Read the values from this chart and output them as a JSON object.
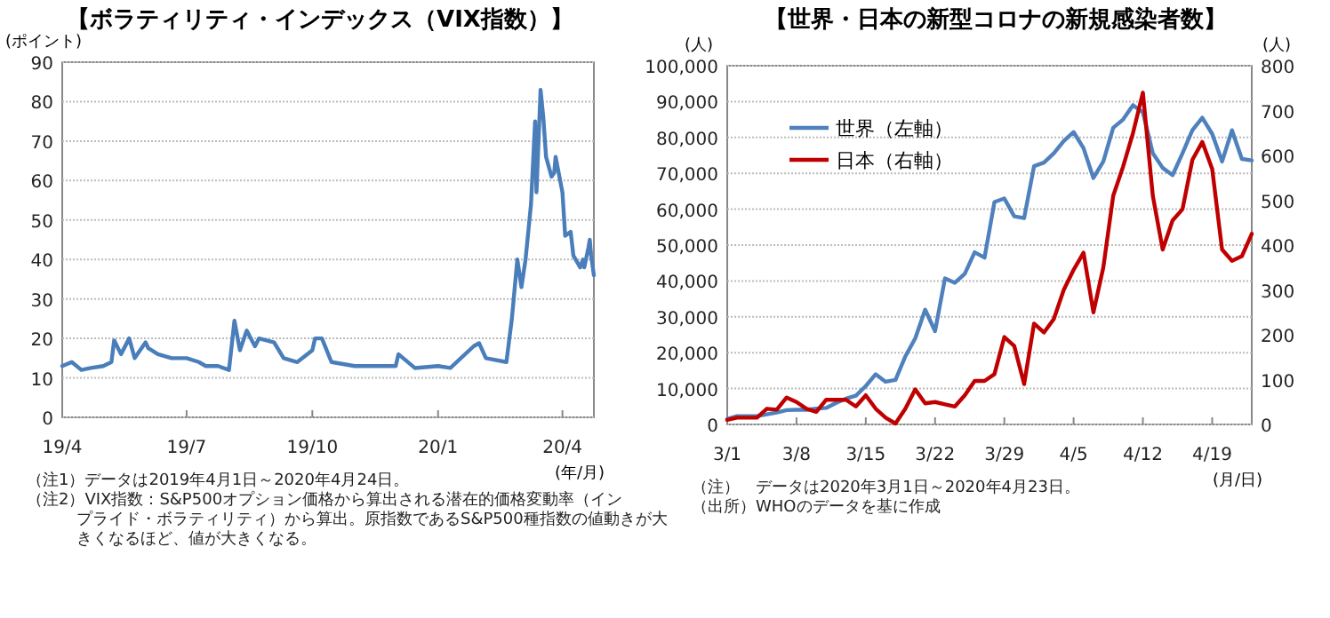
{
  "chart_data": [
    {
      "type": "line",
      "title": "【ボラティリティ・インデックス（VIX指数）】",
      "ylabel": "(ポイント)",
      "xlabel": "(年/月)",
      "x": [
        "2019-04-01",
        "2019-04-08",
        "2019-04-15",
        "2019-04-22",
        "2019-05-01",
        "2019-05-07",
        "2019-05-09",
        "2019-05-14",
        "2019-05-20",
        "2019-05-24",
        "2019-06-01",
        "2019-06-03",
        "2019-06-10",
        "2019-06-20",
        "2019-07-01",
        "2019-07-10",
        "2019-07-15",
        "2019-07-24",
        "2019-08-01",
        "2019-08-05",
        "2019-08-09",
        "2019-08-14",
        "2019-08-20",
        "2019-08-23",
        "2019-09-03",
        "2019-09-10",
        "2019-09-20",
        "2019-10-01",
        "2019-10-03",
        "2019-10-08",
        "2019-10-15",
        "2019-11-01",
        "2019-12-01",
        "2019-12-03",
        "2019-12-15",
        "2020-01-01",
        "2020-01-10",
        "2020-01-27",
        "2020-01-31",
        "2020-02-05",
        "2020-02-20",
        "2020-02-24",
        "2020-02-28",
        "2020-03-02",
        "2020-03-05",
        "2020-03-09",
        "2020-03-12",
        "2020-03-13",
        "2020-03-16",
        "2020-03-18",
        "2020-03-20",
        "2020-03-24",
        "2020-03-26",
        "2020-03-27",
        "2020-04-01",
        "2020-04-03",
        "2020-04-07",
        "2020-04-09",
        "2020-04-14",
        "2020-04-16",
        "2020-04-17",
        "2020-04-20",
        "2020-04-21",
        "2020-04-22",
        "2020-04-24"
      ],
      "series": [
        {
          "color": "#4a7ebb",
          "values": [
            13,
            14,
            12,
            12.5,
            13,
            14,
            19.5,
            16,
            20,
            15,
            19,
            17.5,
            16,
            15,
            15,
            14,
            13,
            13,
            12,
            24.5,
            17,
            22,
            18,
            20,
            19,
            15,
            14,
            17,
            20,
            20,
            14,
            13,
            13,
            16,
            12.5,
            13,
            12.5,
            18,
            18.8,
            15,
            14,
            25,
            40,
            33,
            40,
            54,
            75,
            57,
            83,
            76,
            66,
            61,
            62,
            66,
            57,
            46,
            47,
            41,
            38,
            40,
            38,
            43,
            45,
            41,
            36
          ]
        }
      ],
      "xlim": [
        "2019-04-01",
        "2020-04-24"
      ],
      "xticks": [
        {
          "value": "2019-04-01",
          "label": "19/4"
        },
        {
          "value": "2019-07-01",
          "label": "19/7"
        },
        {
          "value": "2019-10-01",
          "label": "19/10"
        },
        {
          "value": "2020-01-01",
          "label": "20/1"
        },
        {
          "value": "2020-04-01",
          "label": "20/4"
        }
      ],
      "ylim": [
        0,
        90
      ],
      "yticks": [
        0,
        10,
        20,
        30,
        40,
        50,
        60,
        70,
        80,
        90
      ],
      "grid": "y",
      "annotations": [
        "（注1）データは2019年4月1日～2020年4月24日。",
        "（注2）VIX指数：S&P500オプション価格から算出される潜在的価格変動率（インプライド・ボラティリティ）から算出。原指数であるS&P500種指数の値動きが大きくなるほど、値が大きくなる。"
      ]
    },
    {
      "type": "line",
      "title": "【世界・日本の新型コロナの新規感染者数】",
      "ylabel": "(人)",
      "y2label": "(人)",
      "xlabel": "(月/日)",
      "x": [
        "2020-03-01",
        "2020-03-02",
        "2020-03-03",
        "2020-03-04",
        "2020-03-05",
        "2020-03-06",
        "2020-03-07",
        "2020-03-08",
        "2020-03-09",
        "2020-03-10",
        "2020-03-11",
        "2020-03-12",
        "2020-03-13",
        "2020-03-14",
        "2020-03-15",
        "2020-03-16",
        "2020-03-17",
        "2020-03-18",
        "2020-03-19",
        "2020-03-20",
        "2020-03-21",
        "2020-03-22",
        "2020-03-23",
        "2020-03-24",
        "2020-03-25",
        "2020-03-26",
        "2020-03-27",
        "2020-03-28",
        "2020-03-29",
        "2020-03-30",
        "2020-03-31",
        "2020-04-01",
        "2020-04-02",
        "2020-04-03",
        "2020-04-04",
        "2020-04-05",
        "2020-04-06",
        "2020-04-07",
        "2020-04-08",
        "2020-04-09",
        "2020-04-10",
        "2020-04-11",
        "2020-04-12",
        "2020-04-13",
        "2020-04-14",
        "2020-04-15",
        "2020-04-16",
        "2020-04-17",
        "2020-04-18",
        "2020-04-19",
        "2020-04-20",
        "2020-04-21",
        "2020-04-22",
        "2020-04-23"
      ],
      "series": [
        {
          "name": "世界（左軸）",
          "color": "#4f81bd",
          "values": [
            1500,
            2300,
            2300,
            2300,
            2800,
            3300,
            4000,
            4100,
            4100,
            4400,
            4600,
            6000,
            7200,
            8000,
            10700,
            14000,
            11900,
            12400,
            19000,
            24000,
            32000,
            26000,
            40700,
            39500,
            42000,
            48000,
            46500,
            62000,
            63000,
            58000,
            57500,
            72000,
            73000,
            75600,
            79000,
            81500,
            77000,
            68700,
            73300,
            82700,
            85000,
            89000,
            87000,
            75600,
            71500,
            69500,
            75600,
            82000,
            85500,
            81000,
            73300,
            82000,
            74000,
            73600
          ]
        },
        {
          "name": "日本（右軸）",
          "color": "#c00000",
          "axis": "y2",
          "values": [
            10,
            15,
            15,
            15,
            35,
            33,
            60,
            50,
            35,
            28,
            55,
            55,
            55,
            40,
            65,
            35,
            15,
            2,
            35,
            78,
            47,
            50,
            45,
            40,
            65,
            97,
            97,
            112,
            195,
            175,
            90,
            225,
            205,
            235,
            300,
            345,
            383,
            250,
            350,
            510,
            575,
            650,
            740,
            510,
            390,
            455,
            480,
            590,
            630,
            570,
            390,
            365,
            375,
            425
          ]
        }
      ],
      "xlim": [
        "2020-03-01",
        "2020-04-23"
      ],
      "xticks": [
        {
          "value": "2020-03-01",
          "label": "3/1"
        },
        {
          "value": "2020-03-08",
          "label": "3/8"
        },
        {
          "value": "2020-03-15",
          "label": "3/15"
        },
        {
          "value": "2020-03-22",
          "label": "3/22"
        },
        {
          "value": "2020-03-29",
          "label": "3/29"
        },
        {
          "value": "2020-04-05",
          "label": "4/5"
        },
        {
          "value": "2020-04-12",
          "label": "4/12"
        },
        {
          "value": "2020-04-19",
          "label": "4/19"
        }
      ],
      "ylim": [
        0,
        100000
      ],
      "yticks": [
        0,
        {
          "value": 10000,
          "label": "10,000"
        },
        {
          "value": 20000,
          "label": "20,000"
        },
        {
          "value": 30000,
          "label": "30,000"
        },
        {
          "value": 40000,
          "label": "40,000"
        },
        {
          "value": 50000,
          "label": "50,000"
        },
        {
          "value": 60000,
          "label": "60,000"
        },
        {
          "value": 70000,
          "label": "70,000"
        },
        {
          "value": 80000,
          "label": "80,000"
        },
        {
          "value": 90000,
          "label": "90,000"
        },
        {
          "value": 100000,
          "label": "100,000"
        }
      ],
      "y2lim": [
        0,
        800
      ],
      "y2ticks": [
        0,
        100,
        200,
        300,
        400,
        500,
        600,
        700,
        800
      ],
      "grid": "y",
      "legend": "top left",
      "annotations": [
        "（注）　データは2020年3月1日～2020年4月23日。",
        "（出所）WHOのデータを基に作成"
      ]
    }
  ]
}
